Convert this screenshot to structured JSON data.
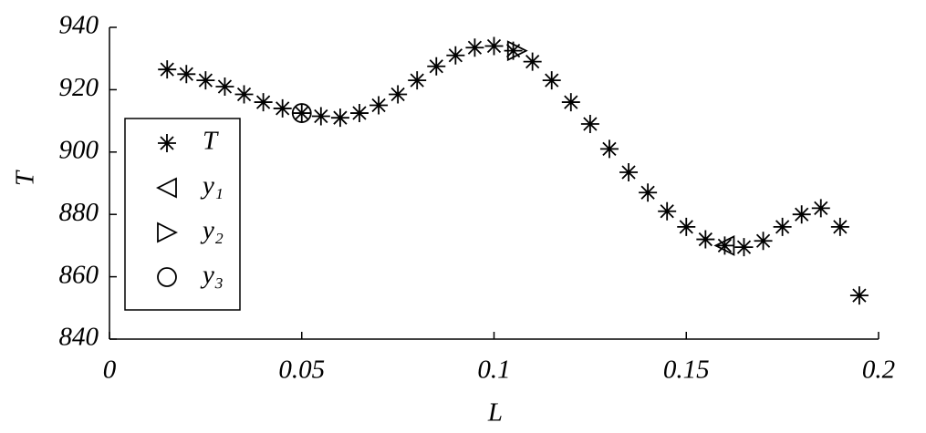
{
  "chart_data": {
    "type": "scatter",
    "xlabel": "L",
    "ylabel": "T",
    "xlim": [
      0,
      0.2
    ],
    "xticks": [
      0,
      0.05,
      0.1,
      0.15,
      0.2
    ],
    "ylim": [
      840,
      940
    ],
    "yticks": [
      840,
      860,
      880,
      900,
      920,
      940
    ],
    "legend": "left",
    "series": [
      {
        "name": "T",
        "marker": "asterisk",
        "color": "#000000",
        "x": [
          0.015,
          0.02,
          0.025,
          0.03,
          0.035,
          0.04,
          0.045,
          0.05,
          0.055,
          0.06,
          0.065,
          0.07,
          0.075,
          0.08,
          0.085,
          0.09,
          0.095,
          0.1,
          0.105,
          0.11,
          0.115,
          0.12,
          0.125,
          0.13,
          0.135,
          0.14,
          0.145,
          0.15,
          0.155,
          0.16,
          0.165,
          0.17,
          0.175,
          0.18,
          0.185,
          0.19,
          0.195
        ],
        "values": [
          926.5,
          925,
          923,
          921,
          918.5,
          916,
          914,
          912.5,
          911.5,
          911,
          912.5,
          915,
          918.5,
          923,
          927.5,
          931,
          933.5,
          934,
          932.5,
          929,
          923,
          916,
          909,
          901,
          893.5,
          887,
          881,
          876,
          872,
          870,
          869.5,
          871.5,
          876,
          880,
          882,
          876,
          854
        ]
      },
      {
        "name": "y₁",
        "marker": "triangle-left",
        "color": "#000000",
        "x": [
          0.16
        ],
        "values": [
          870
        ]
      },
      {
        "name": "y₂",
        "marker": "triangle-right",
        "color": "#000000",
        "x": [
          0.106
        ],
        "values": [
          932.5
        ]
      },
      {
        "name": "y₃",
        "marker": "circle",
        "color": "#000000",
        "x": [
          0.05
        ],
        "values": [
          912.5
        ]
      }
    ]
  }
}
